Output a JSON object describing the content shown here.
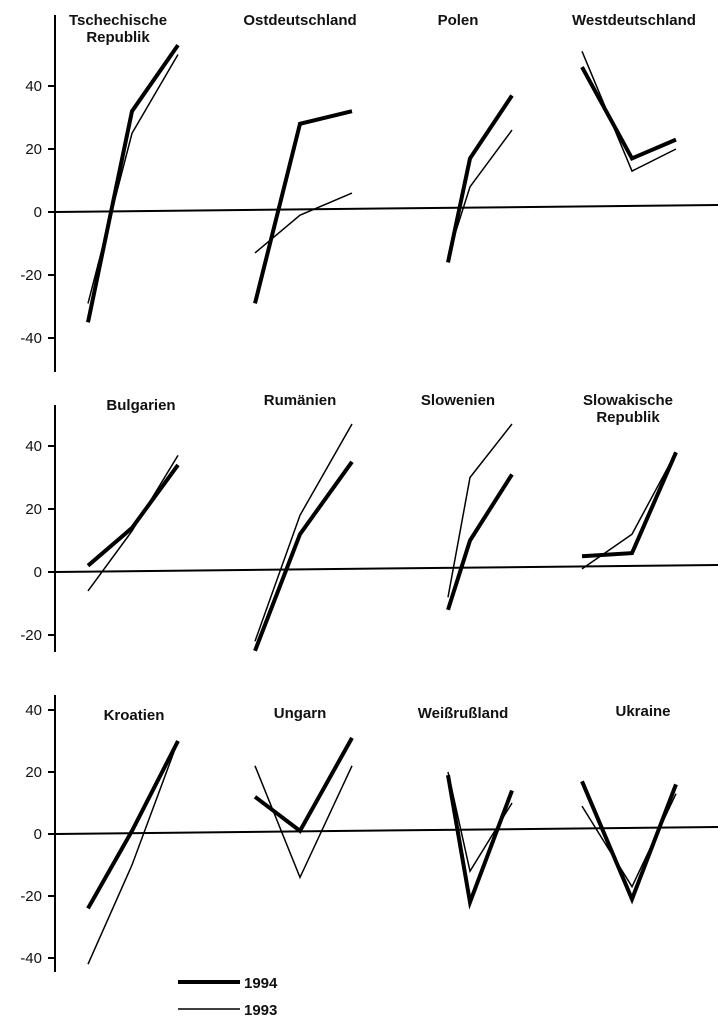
{
  "chart_data": {
    "type": "line",
    "x": [
      1,
      2,
      3
    ],
    "series_names": [
      "1994",
      "1993"
    ],
    "legend": [
      {
        "label": "1994",
        "style": "thick"
      },
      {
        "label": "1993",
        "style": "thin"
      }
    ],
    "colors": {
      "line": "#000000",
      "text": "#111111"
    },
    "rows": [
      {
        "ylim": [
          -50,
          55
        ],
        "yticks": [
          -40,
          -20,
          0,
          20,
          40
        ],
        "panels": [
          {
            "title": [
              "Tschechische",
              "Republik"
            ],
            "series": [
              {
                "name": "1994",
                "values": [
                  -35,
                  32,
                  53
                ]
              },
              {
                "name": "1993",
                "values": [
                  -29,
                  25,
                  50
                ]
              }
            ]
          },
          {
            "title": [
              "Ostdeutschland"
            ],
            "series": [
              {
                "name": "1994",
                "values": [
                  -29,
                  28,
                  32
                ]
              },
              {
                "name": "1993",
                "values": [
                  -13,
                  -1,
                  6
                ]
              }
            ]
          },
          {
            "title": [
              "Polen"
            ],
            "series": [
              {
                "name": "1994",
                "values": [
                  -16,
                  17,
                  37
                ]
              },
              {
                "name": "1993",
                "values": [
                  -14,
                  8,
                  26
                ]
              }
            ]
          },
          {
            "title": [
              "Westdeutschland"
            ],
            "series": [
              {
                "name": "1994",
                "values": [
                  46,
                  17,
                  23
                ]
              },
              {
                "name": "1993",
                "values": [
                  51,
                  13,
                  20
                ]
              }
            ]
          }
        ]
      },
      {
        "ylim": [
          -25,
          53
        ],
        "yticks": [
          -20,
          0,
          20,
          40
        ],
        "panels": [
          {
            "title": [
              "Bulgarien"
            ],
            "series": [
              {
                "name": "1994",
                "values": [
                  2,
                  14,
                  34
                ]
              },
              {
                "name": "1993",
                "values": [
                  -6,
                  13,
                  37
                ]
              }
            ]
          },
          {
            "title": [
              "Rumänien"
            ],
            "series": [
              {
                "name": "1994",
                "values": [
                  -25,
                  12,
                  35
                ]
              },
              {
                "name": "1993",
                "values": [
                  -22,
                  18,
                  47
                ]
              }
            ]
          },
          {
            "title": [
              "Slowenien"
            ],
            "series": [
              {
                "name": "1994",
                "values": [
                  -12,
                  10,
                  31
                ]
              },
              {
                "name": "1993",
                "values": [
                  -8,
                  30,
                  47
                ]
              }
            ]
          },
          {
            "title": [
              "Slowakische",
              "Republik"
            ],
            "series": [
              {
                "name": "1994",
                "values": [
                  5,
                  6,
                  38
                ]
              },
              {
                "name": "1993",
                "values": [
                  1,
                  12,
                  38
                ]
              }
            ]
          }
        ]
      },
      {
        "ylim": [
          -44,
          44
        ],
        "yticks": [
          -40,
          -20,
          0,
          20,
          40
        ],
        "panels": [
          {
            "title": [
              "Kroatien"
            ],
            "series": [
              {
                "name": "1994",
                "values": [
                  -24,
                  1,
                  30
                ]
              },
              {
                "name": "1993",
                "values": [
                  -42,
                  -10,
                  30
                ]
              }
            ]
          },
          {
            "title": [
              "Ungarn"
            ],
            "series": [
              {
                "name": "1994",
                "values": [
                  12,
                  1,
                  31
                ]
              },
              {
                "name": "1993",
                "values": [
                  22,
                  -14,
                  22
                ]
              }
            ]
          },
          {
            "title": [
              "Weißrußland"
            ],
            "series": [
              {
                "name": "1994",
                "values": [
                  19,
                  -22,
                  14
                ]
              },
              {
                "name": "1993",
                "values": [
                  20,
                  -12,
                  10
                ]
              }
            ]
          },
          {
            "title": [
              "Ukraine"
            ],
            "series": [
              {
                "name": "1994",
                "values": [
                  17,
                  -21,
                  16
                ]
              },
              {
                "name": "1993",
                "values": [
                  9,
                  -17,
                  13
                ]
              }
            ]
          }
        ]
      }
    ]
  }
}
